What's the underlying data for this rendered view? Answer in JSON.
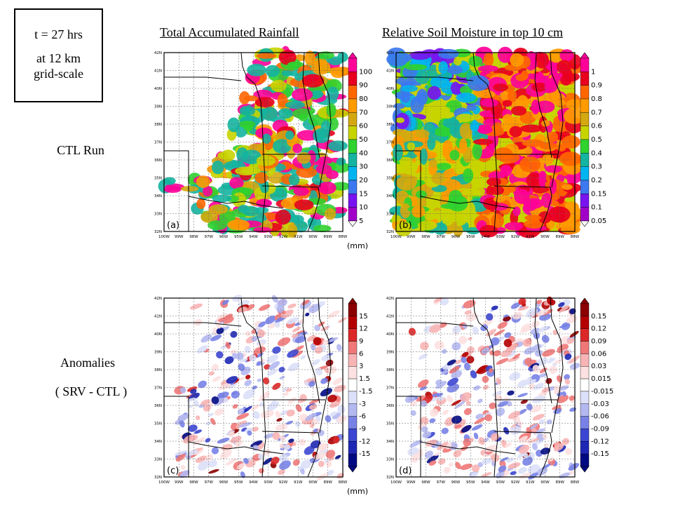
{
  "info": {
    "line1": "t = 27 hrs",
    "line2": "at 12 km",
    "line3": "grid-scale"
  },
  "titles": {
    "col1": "Total Accumulated Rainfall",
    "col2": "Relative Soil Moisture in top 10 cm"
  },
  "rows": {
    "ctl": "CTL Run",
    "anom1": "Anomalies",
    "anom2": "( SRV - CTL )"
  },
  "axes": {
    "lat": [
      "42N",
      "41N",
      "40N",
      "39N",
      "38N",
      "37N",
      "36N",
      "35N",
      "34N",
      "33N",
      "32N"
    ],
    "lon": [
      "100W",
      "99W",
      "98W",
      "97W",
      "96W",
      "95W",
      "94W",
      "93W",
      "92W",
      "91W",
      "90W",
      "89W",
      "88W"
    ]
  },
  "panels": {
    "a": {
      "label": "(a)",
      "unit": "(mm)",
      "colorbar": [
        "100",
        "90",
        "80",
        "70",
        "60",
        "50",
        "40",
        "30",
        "20",
        "15",
        "10",
        "5"
      ],
      "colors": [
        "#ff0099",
        "#e8001e",
        "#ff6600",
        "#ff9a00",
        "#d4a810",
        "#c8d400",
        "#2fd22f",
        "#14b4a0",
        "#00b4f0",
        "#3c78f0",
        "#7814f0",
        "#a000c8"
      ]
    },
    "b": {
      "label": "(b)",
      "unit": "",
      "colorbar": [
        "1",
        "0.9",
        "0.8",
        "0.7",
        "0.6",
        "0.5",
        "0.4",
        "0.3",
        "0.2",
        "0.15",
        "0.1",
        "0.05"
      ],
      "colors": [
        "#ff0099",
        "#e8001e",
        "#ff6600",
        "#ff9a00",
        "#d4a810",
        "#c8d400",
        "#2fd22f",
        "#14b4a0",
        "#00b4f0",
        "#3c78f0",
        "#7814f0",
        "#a000c8"
      ]
    },
    "c": {
      "label": "(c)",
      "unit": "(mm)",
      "colorbar": [
        "15",
        "12",
        "9",
        "6",
        "3",
        "1.5",
        "-1.5",
        "-3",
        "-6",
        "-9",
        "-12",
        "-15"
      ],
      "colors": [
        "#8b0000",
        "#b40000",
        "#dc2828",
        "#f07878",
        "#f8b4b4",
        "#fde0e0",
        "#ffffff",
        "#dce0f8",
        "#b4b8f0",
        "#7882e6",
        "#3c46d2",
        "#1e28b4",
        "#000a82"
      ]
    },
    "d": {
      "label": "(d)",
      "unit": "",
      "colorbar": [
        "0.15",
        "0.12",
        "0.09",
        "0.06",
        "0.03",
        "0.015",
        "-0.015",
        "-0.03",
        "-0.06",
        "-0.09",
        "-0.12",
        "-0.15"
      ],
      "colors": [
        "#8b0000",
        "#b40000",
        "#dc2828",
        "#f07878",
        "#f8b4b4",
        "#fde0e0",
        "#ffffff",
        "#dce0f8",
        "#b4b8f0",
        "#7882e6",
        "#3c46d2",
        "#1e28b4",
        "#000a82"
      ]
    }
  }
}
